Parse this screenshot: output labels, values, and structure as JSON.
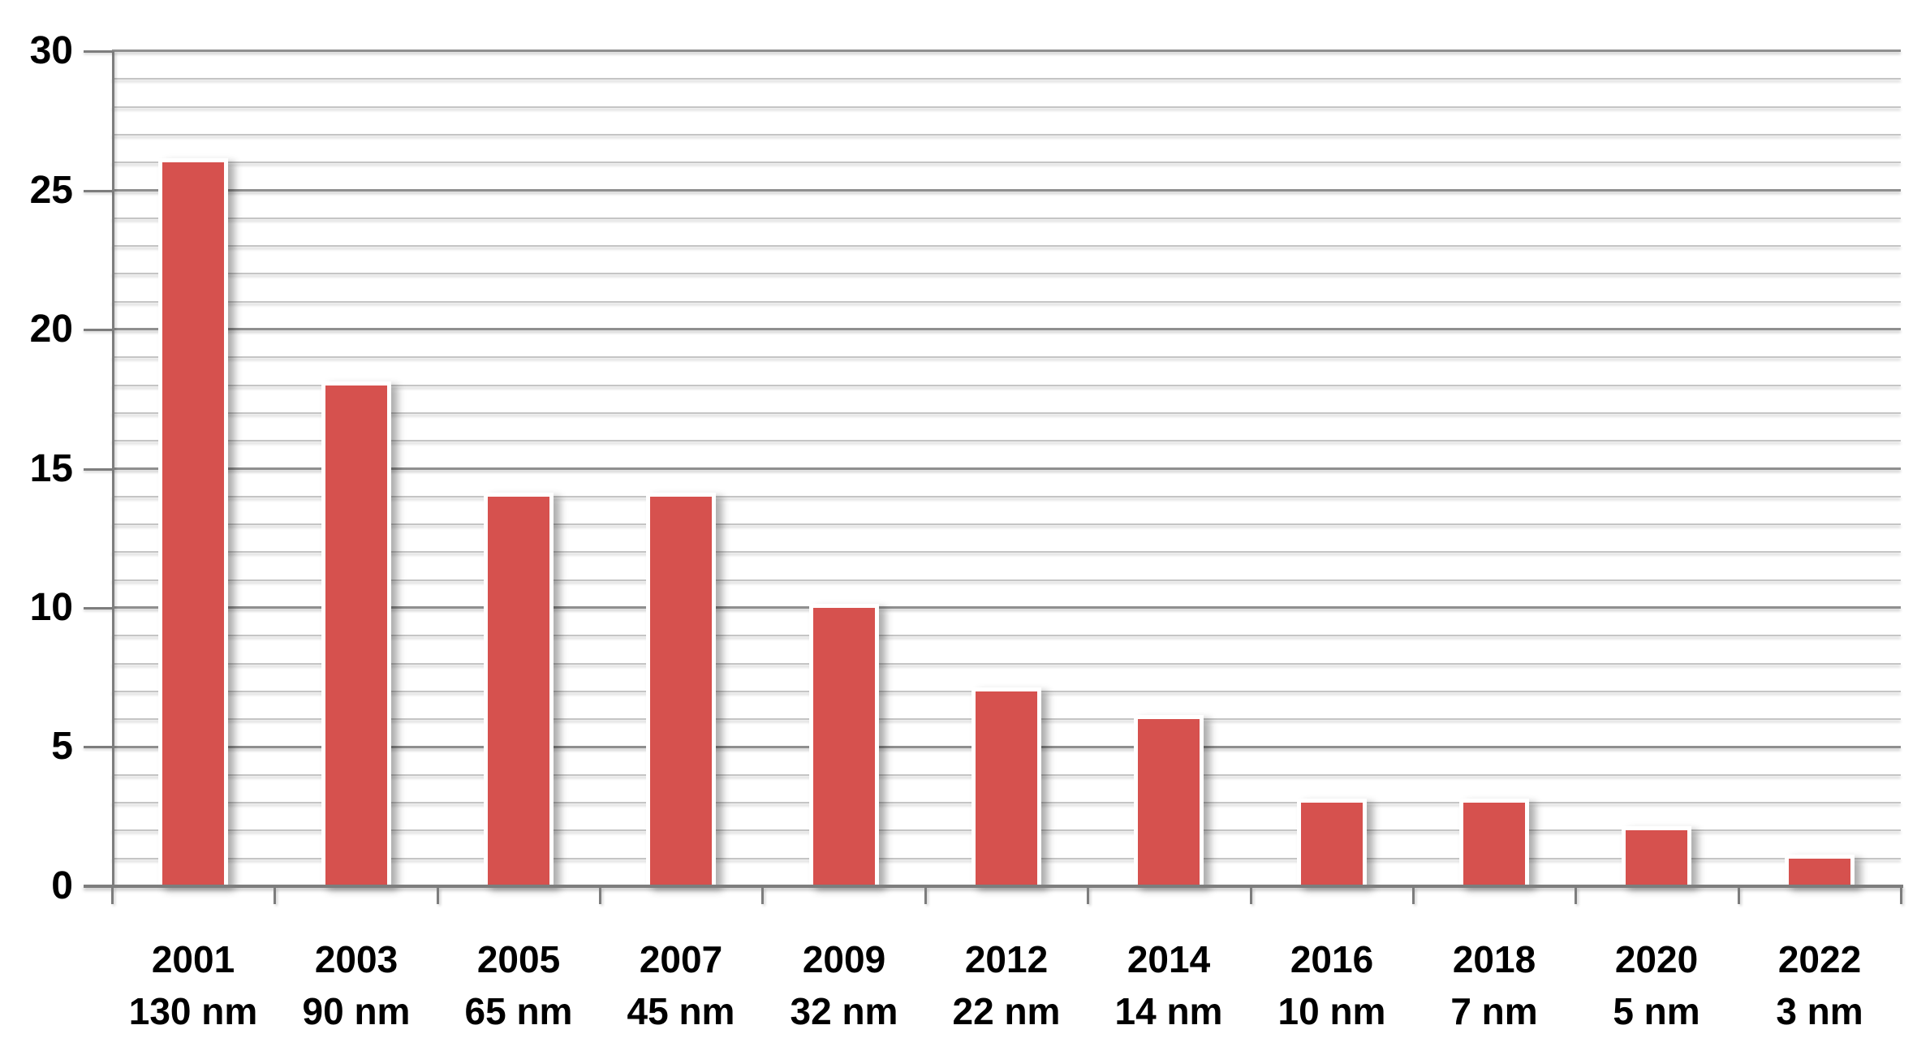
{
  "chart_data": {
    "type": "bar",
    "title": "",
    "xlabel": "",
    "ylabel": "",
    "categories": [
      {
        "label": "2001",
        "sublabel": "130 nm"
      },
      {
        "label": "2003",
        "sublabel": "90 nm"
      },
      {
        "label": "2005",
        "sublabel": "65 nm"
      },
      {
        "label": "2007",
        "sublabel": "45 nm"
      },
      {
        "label": "2009",
        "sublabel": "32 nm"
      },
      {
        "label": "2012",
        "sublabel": "22 nm"
      },
      {
        "label": "2014",
        "sublabel": "14 nm"
      },
      {
        "label": "2016",
        "sublabel": "10 nm"
      },
      {
        "label": "2018",
        "sublabel": "7 nm"
      },
      {
        "label": "2020",
        "sublabel": "5 nm"
      },
      {
        "label": "2022",
        "sublabel": "3 nm"
      }
    ],
    "values": [
      26,
      18,
      14,
      14,
      10,
      7,
      6,
      3,
      3,
      2,
      1
    ],
    "ylim": [
      0,
      30
    ],
    "y_major_step": 5,
    "y_minor_step": 1,
    "y_tick_labels": [
      "0",
      "5",
      "10",
      "15",
      "20",
      "25",
      "30"
    ],
    "grid": true,
    "legend_position": "none",
    "bar_color": "#d6514e",
    "bar_border_color": "#ffffff",
    "major_grid_color": "#8f8f8f",
    "minor_grid_color": "#c5c5c5",
    "axis_color": "#7d7d7d",
    "label_color": "#000000",
    "background_color": "#ffffff"
  }
}
